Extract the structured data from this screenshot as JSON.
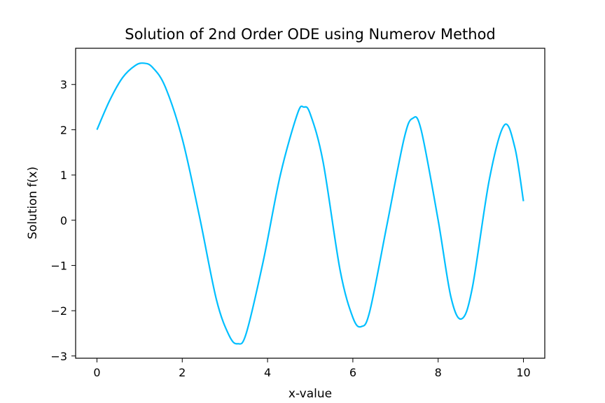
{
  "chart_data": {
    "type": "line",
    "title": "Solution of 2nd Order ODE using Numerov Method",
    "xlabel": "x-value",
    "ylabel": "Solution f(x)",
    "xlim": [
      -0.5,
      10.5
    ],
    "ylim": [
      -3.05,
      3.8
    ],
    "xticks": [
      0,
      2,
      4,
      6,
      8,
      10
    ],
    "xtick_labels": [
      "0",
      "2",
      "4",
      "6",
      "8",
      "10"
    ],
    "yticks": [
      -3,
      -2,
      -1,
      0,
      1,
      2,
      3
    ],
    "ytick_labels": [
      "−3",
      "−2",
      "−1",
      "0",
      "1",
      "2",
      "3"
    ],
    "grid": false,
    "series": [
      {
        "color": "#00bfff",
        "x": [
          0,
          0.3,
          0.6,
          0.9,
          1.1,
          1.3,
          1.6,
          2.0,
          2.4,
          2.8,
          3.1,
          3.3,
          3.5,
          3.9,
          4.3,
          4.7,
          4.85,
          5.0,
          5.3,
          5.7,
          6.0,
          6.2,
          6.4,
          6.8,
          7.2,
          7.4,
          7.6,
          8.0,
          8.3,
          8.55,
          8.8,
          9.2,
          9.55,
          9.8,
          10.0
        ],
        "y": [
          2.0,
          2.65,
          3.15,
          3.42,
          3.47,
          3.38,
          2.95,
          1.8,
          0.1,
          -1.75,
          -2.55,
          -2.73,
          -2.5,
          -0.9,
          1.0,
          2.35,
          2.5,
          2.35,
          1.3,
          -1.1,
          -2.15,
          -2.35,
          -2.0,
          -0.1,
          1.8,
          2.25,
          2.0,
          0.0,
          -1.7,
          -2.18,
          -1.5,
          0.9,
          2.1,
          1.6,
          0.42
        ]
      }
    ]
  }
}
